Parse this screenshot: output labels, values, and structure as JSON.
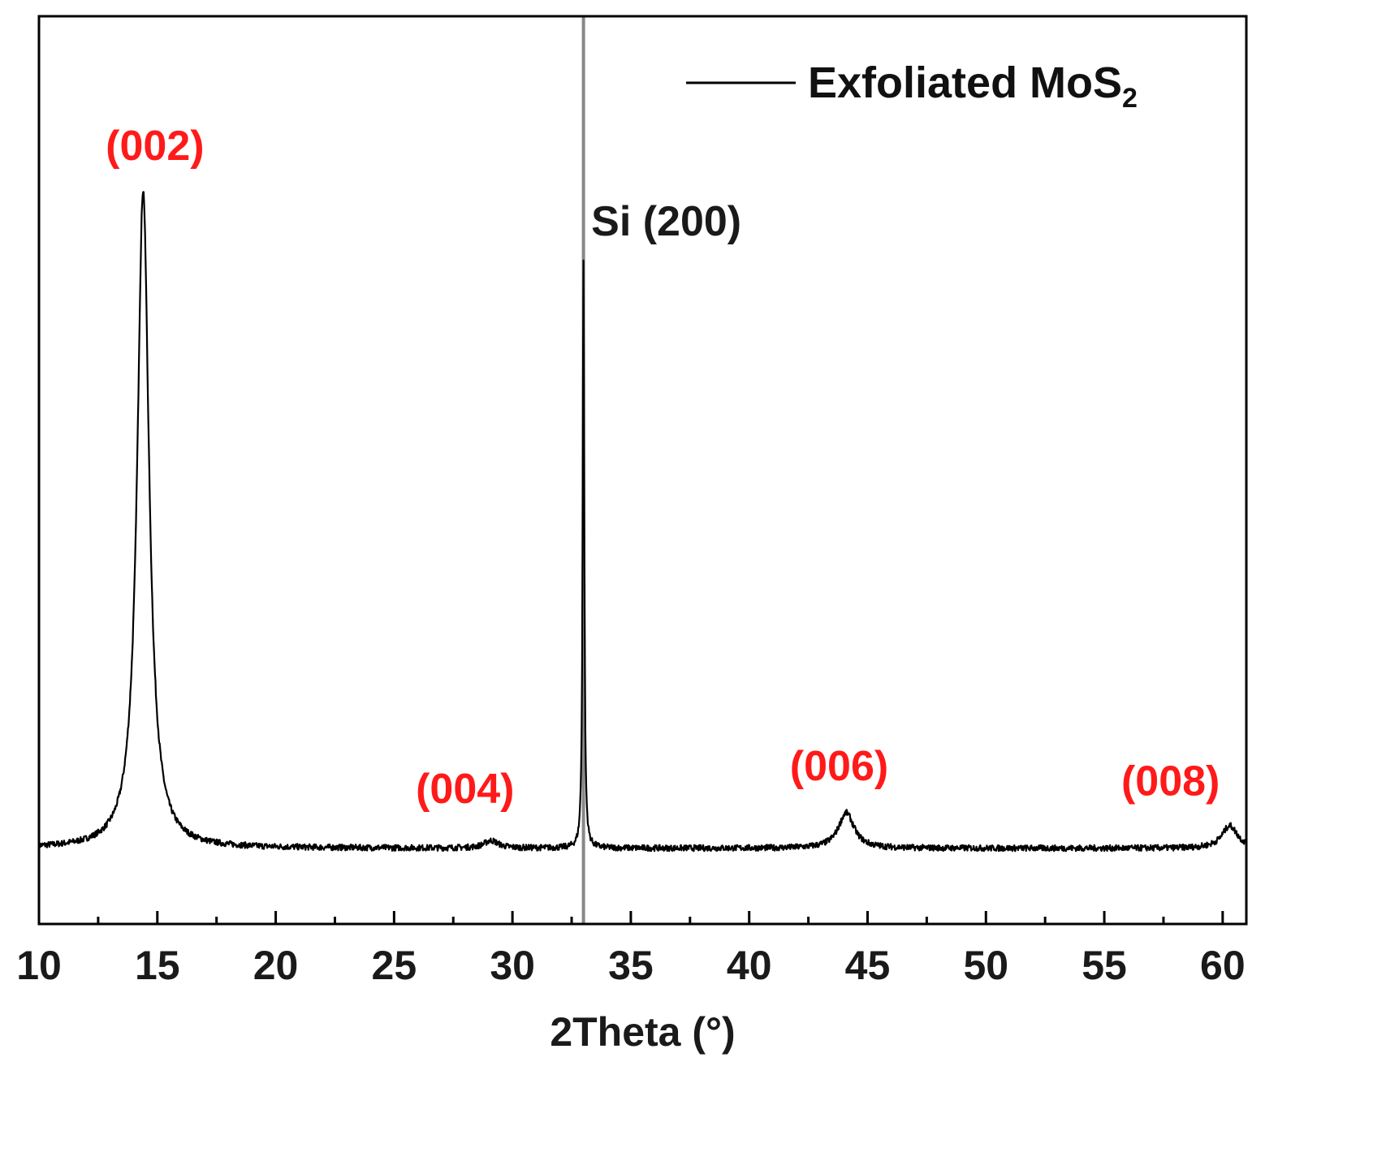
{
  "chart_data": {
    "type": "line",
    "title": "",
    "xlabel": "2Theta (°)",
    "ylabel": "",
    "xlim": [
      10,
      61
    ],
    "ylim": [
      0,
      1.2
    ],
    "x_ticks": [
      10,
      15,
      20,
      25,
      30,
      35,
      40,
      45,
      50,
      55,
      60
    ],
    "x_tick_labels": [
      "10",
      "15",
      "20",
      "25",
      "30",
      "35",
      "40",
      "45",
      "50",
      "55",
      "60"
    ],
    "grid": false,
    "legend": {
      "placement": "top-right",
      "entries": [
        {
          "name": "Exfoliated MoS",
          "subscript": "2",
          "color": "#000000"
        }
      ]
    },
    "series": [
      {
        "name": "Exfoliated MoS2",
        "color": "#000000",
        "baseline": 0.1,
        "peaks": [
          {
            "center": 14.4,
            "height": 0.87,
            "width": 0.3
          },
          {
            "center": 29.1,
            "height": 0.01,
            "width": 0.35
          },
          {
            "center": 33.0,
            "height": 0.78,
            "width": 0.04
          },
          {
            "center": 44.1,
            "height": 0.047,
            "width": 0.4
          },
          {
            "center": 60.3,
            "height": 0.03,
            "width": 0.4
          }
        ]
      }
    ],
    "reference_lines": [
      {
        "x": 33.0,
        "color": "#888888"
      }
    ],
    "annotations": [
      {
        "text": "(002)",
        "x": 14.9,
        "y": 1.01,
        "color": "#ff1a1a"
      },
      {
        "text": "Si (200)",
        "x": 36.5,
        "y": 0.91,
        "color": "#1a1a1a"
      },
      {
        "text": "(004)",
        "x": 28.0,
        "y": 0.16,
        "color": "#ff1a1a"
      },
      {
        "text": "(006)",
        "x": 43.8,
        "y": 0.19,
        "color": "#ff1a1a"
      },
      {
        "text": "(008)",
        "x": 57.8,
        "y": 0.17,
        "color": "#ff1a1a"
      }
    ]
  }
}
